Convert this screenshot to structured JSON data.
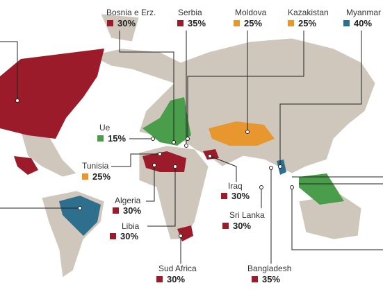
{
  "items": [
    {
      "name": "Bosnia e Erz.",
      "value": "30%",
      "color": "#9b1b2a"
    },
    {
      "name": "Serbia",
      "value": "35%",
      "color": "#9b1b2a"
    },
    {
      "name": "Moldova",
      "value": "25%",
      "color": "#e8972e"
    },
    {
      "name": "Kazakistan",
      "value": "25%",
      "color": "#e8972e"
    },
    {
      "name": "Myanmar",
      "value": "40%",
      "color": "#2e6f8e"
    },
    {
      "name": "Ue",
      "value": "15%",
      "color": "#4a9d4a"
    },
    {
      "name": "Tunisia",
      "value": "25%",
      "color": "#e8972e"
    },
    {
      "name": "Algeria",
      "value": "30%",
      "color": "#9b1b2a"
    },
    {
      "name": "Libia",
      "value": "30%",
      "color": "#9b1b2a"
    },
    {
      "name": "Iraq",
      "value": "30%",
      "color": "#9b1b2a"
    },
    {
      "name": "Sri Lanka",
      "value": "30%",
      "color": "#9b1b2a"
    },
    {
      "name": "Sud Africa",
      "value": "30%",
      "color": "#9b1b2a"
    },
    {
      "name": "Bangladesh",
      "value": "35%",
      "color": "#9b1b2a"
    }
  ]
}
